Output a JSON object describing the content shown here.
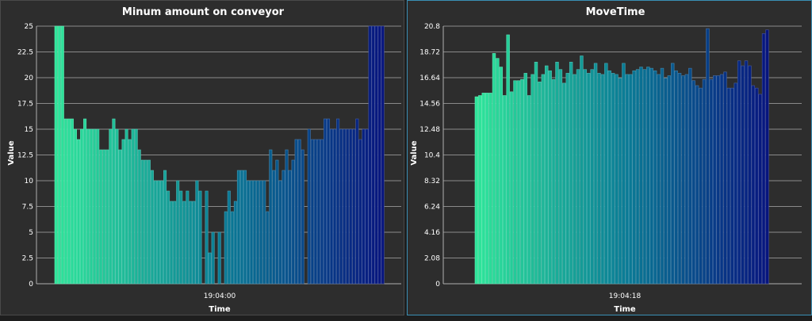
{
  "chart_data": [
    {
      "type": "bar",
      "title": "Minum amount on conveyor",
      "xlabel": "Time",
      "ylabel": "Value",
      "x_tick_label": "19:04:00",
      "ylim": [
        0,
        25
      ],
      "y_ticks": [
        "0",
        "2.5",
        "5",
        "7.5",
        "10",
        "12.5",
        "15",
        "17.5",
        "20",
        "22.5",
        "25"
      ],
      "grid": true,
      "values": [
        25,
        25,
        25,
        16,
        16,
        16,
        15,
        14,
        15,
        16,
        15,
        15,
        15,
        15,
        13,
        13,
        13,
        15,
        16,
        15,
        13,
        14,
        15,
        14,
        15,
        15,
        13,
        12,
        12,
        12,
        11,
        10,
        10,
        10,
        11,
        9,
        8,
        8,
        10,
        9,
        8,
        9,
        8,
        8,
        10,
        9,
        null,
        9,
        3,
        5,
        null,
        5,
        null,
        7,
        9,
        7,
        8,
        11,
        11,
        11,
        10,
        10,
        10,
        10,
        10,
        10,
        7,
        13,
        11,
        12,
        10,
        11,
        13,
        11,
        12,
        14,
        14,
        13,
        null,
        15,
        14,
        14,
        14,
        14,
        16,
        16,
        15,
        15,
        16,
        15,
        15,
        15,
        15,
        15,
        16,
        14,
        15,
        15,
        25,
        25,
        25,
        25,
        25
      ],
      "colors": {
        "start": "#2ee59a",
        "mid": "#0a7e96",
        "end": "#07157e"
      }
    },
    {
      "type": "bar",
      "title": "MoveTime",
      "xlabel": "Time",
      "ylabel": "Value",
      "x_tick_label": "19:04:18",
      "ylim": [
        0,
        20.8
      ],
      "y_ticks": [
        "0",
        "2.08",
        "4.16",
        "6.24",
        "8.32",
        "10.4",
        "12.48",
        "14.56",
        "16.64",
        "18.72",
        "20.8"
      ],
      "grid": true,
      "values": [
        15.1,
        15.2,
        15.4,
        15.4,
        15.4,
        18.6,
        18.2,
        17.5,
        15.2,
        20.1,
        15.5,
        16.4,
        16.4,
        16.5,
        17.0,
        15.2,
        16.9,
        17.9,
        16.3,
        16.9,
        17.6,
        17.2,
        16.5,
        17.9,
        17.3,
        16.2,
        17.0,
        17.9,
        16.9,
        17.3,
        18.4,
        17.3,
        17.0,
        17.3,
        17.8,
        17.0,
        16.9,
        17.8,
        17.2,
        17.0,
        16.9,
        16.6,
        17.8,
        16.9,
        16.9,
        17.2,
        17.3,
        17.5,
        17.3,
        17.5,
        17.4,
        17.2,
        16.9,
        17.4,
        16.6,
        16.8,
        17.8,
        17.2,
        17.0,
        16.8,
        16.9,
        17.4,
        16.4,
        16.0,
        15.8,
        16.5,
        20.6,
        16.5,
        16.8,
        16.8,
        16.9,
        17.1,
        15.8,
        15.8,
        16.2,
        18.0,
        17.6,
        18.0,
        17.6,
        16.0,
        15.8,
        15.3,
        20.2,
        20.5
      ],
      "colors": {
        "start": "#2ee59a",
        "mid": "#0a7e96",
        "end": "#07157e"
      }
    }
  ]
}
